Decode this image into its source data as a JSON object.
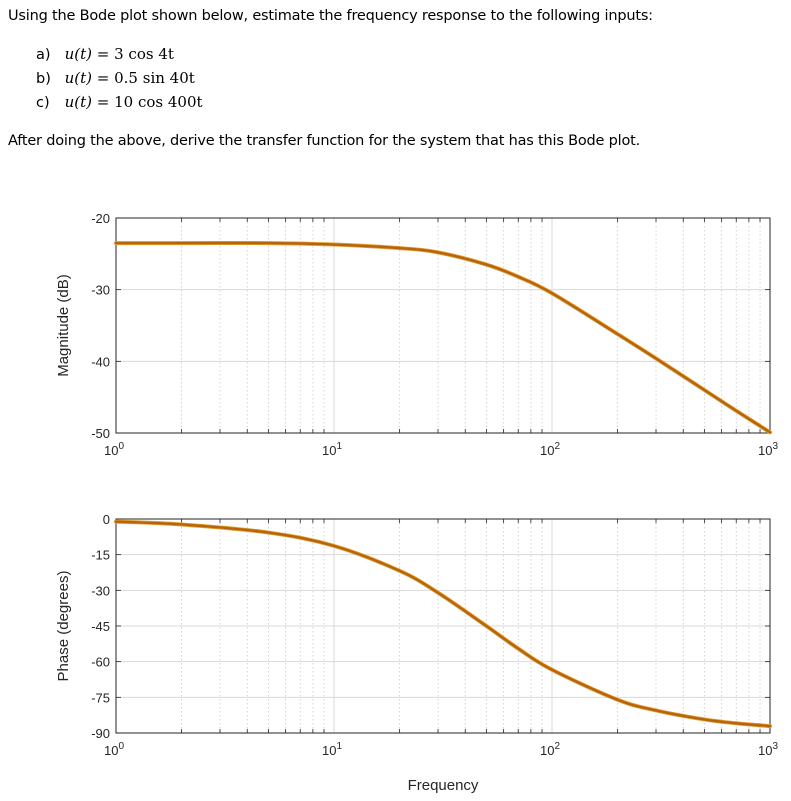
{
  "question": {
    "intro": "Using the Bode plot shown below, estimate the frequency response to the following inputs:",
    "items": [
      {
        "label": "a)",
        "lhs": "u(t)",
        "rhs": " = 3 cos 4t"
      },
      {
        "label": "b)",
        "lhs": "u(t)",
        "rhs": " = 0.5 sin 40t"
      },
      {
        "label": "c)",
        "lhs": "u(t)",
        "rhs": " = 10 cos 400t"
      }
    ],
    "outro": "After doing the above, derive the transfer function for the system that has this Bode plot."
  },
  "colors": {
    "curve": "#b8640f",
    "curve_edge": "#e0a030",
    "axis": "#262626",
    "grid_major": "#d9d9d9",
    "grid_minor": "#c8c8c8"
  },
  "chart_data": [
    {
      "type": "line",
      "title": "",
      "xlabel": "",
      "ylabel": "Magnitude (dB)",
      "xscale": "log",
      "xlim": [
        1,
        1000
      ],
      "ylim": [
        -50,
        -20
      ],
      "xticks": [
        {
          "exp": "0",
          "value": 1
        },
        {
          "exp": "1",
          "value": 10
        },
        {
          "exp": "2",
          "value": 100
        },
        {
          "exp": "3",
          "value": 1000
        }
      ],
      "yticks": [
        -20,
        -30,
        -40,
        -50
      ],
      "grid": true,
      "x": [
        1,
        2,
        5,
        10,
        20,
        30,
        50,
        70,
        100,
        200,
        300,
        500,
        700,
        1000
      ],
      "series": [
        {
          "name": "Magnitude",
          "values": [
            -23.5,
            -23.5,
            -23.5,
            -23.7,
            -24.2,
            -24.8,
            -26.5,
            -28.2,
            -30.5,
            -36.2,
            -39.6,
            -44.0,
            -46.9,
            -49.9
          ]
        }
      ]
    },
    {
      "type": "line",
      "title": "",
      "xlabel": "Frequency",
      "ylabel": "Phase (degrees)",
      "xscale": "log",
      "xlim": [
        1,
        1000
      ],
      "ylim": [
        -90,
        0
      ],
      "xticks": [
        {
          "exp": "0",
          "value": 1
        },
        {
          "exp": "1",
          "value": 10
        },
        {
          "exp": "2",
          "value": 100
        },
        {
          "exp": "3",
          "value": 1000
        }
      ],
      "yticks": [
        0,
        -15,
        -30,
        -45,
        -60,
        -75,
        -90
      ],
      "grid": true,
      "x": [
        1,
        2,
        5,
        10,
        20,
        30,
        50,
        70,
        100,
        200,
        300,
        500,
        700,
        1000
      ],
      "series": [
        {
          "name": "Phase",
          "values": [
            -1.1,
            -2.3,
            -5.7,
            -11.3,
            -21.8,
            -31.0,
            -45.0,
            -54.5,
            -63.4,
            -76.0,
            -80.5,
            -84.3,
            -85.9,
            -87.1
          ]
        }
      ]
    }
  ]
}
